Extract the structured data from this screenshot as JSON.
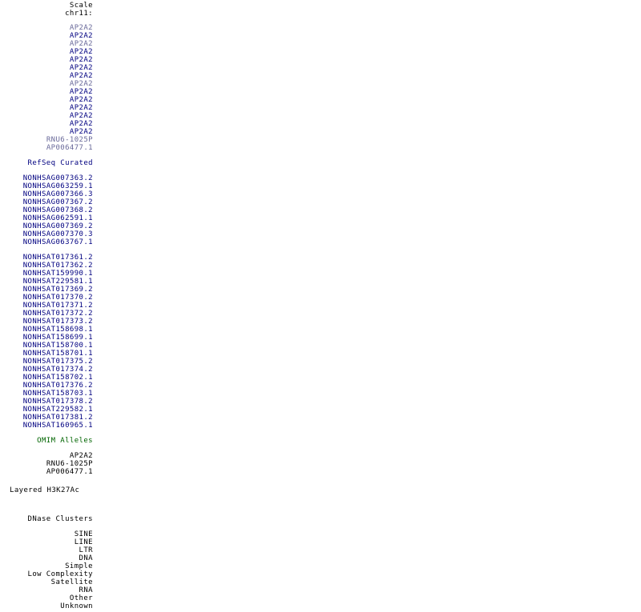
{
  "colors": {
    "black": "#000000",
    "navy": "#000080",
    "muted_navy": "#6a6a9a",
    "green": "#006400"
  },
  "groups": [
    {
      "name": "scale",
      "gap": 0,
      "items": [
        {
          "label": "Scale",
          "color": "black"
        },
        {
          "label": "chr11:",
          "color": "black"
        }
      ]
    },
    {
      "name": "gencode-genes",
      "gap": 8,
      "items": [
        {
          "label": "AP2A2",
          "color": "muted_navy"
        },
        {
          "label": "AP2A2",
          "color": "navy"
        },
        {
          "label": "AP2A2",
          "color": "muted_navy"
        },
        {
          "label": "AP2A2",
          "color": "navy"
        },
        {
          "label": "AP2A2",
          "color": "navy"
        },
        {
          "label": "AP2A2",
          "color": "navy"
        },
        {
          "label": "AP2A2",
          "color": "navy"
        },
        {
          "label": "AP2A2",
          "color": "muted_navy"
        },
        {
          "label": "AP2A2",
          "color": "navy"
        },
        {
          "label": "AP2A2",
          "color": "navy"
        },
        {
          "label": "AP2A2",
          "color": "navy"
        },
        {
          "label": "AP2A2",
          "color": "navy"
        },
        {
          "label": "AP2A2",
          "color": "navy"
        },
        {
          "label": "AP2A2",
          "color": "navy"
        },
        {
          "label": "RNU6-1025P",
          "color": "muted_navy"
        },
        {
          "label": "AP006477.1",
          "color": "muted_navy"
        }
      ]
    },
    {
      "name": "refseq-curated",
      "gap": 9,
      "items": [
        {
          "label": "RefSeq Curated",
          "color": "navy"
        }
      ]
    },
    {
      "name": "noncode-genes",
      "gap": 9,
      "items": [
        {
          "label": "NONHSAG007363.2",
          "color": "navy"
        },
        {
          "label": "NONHSAG063259.1",
          "color": "navy"
        },
        {
          "label": "NONHSAG007366.3",
          "color": "navy"
        },
        {
          "label": "NONHSAG007367.2",
          "color": "navy"
        },
        {
          "label": "NONHSAG007368.2",
          "color": "navy"
        },
        {
          "label": "NONHSAG062591.1",
          "color": "navy"
        },
        {
          "label": "NONHSAG007369.2",
          "color": "navy"
        },
        {
          "label": "NONHSAG007370.3",
          "color": "navy"
        },
        {
          "label": "NONHSAG063767.1",
          "color": "navy"
        }
      ]
    },
    {
      "name": "noncode-transcripts",
      "gap": 9,
      "items": [
        {
          "label": "NONHSAT017361.2",
          "color": "navy"
        },
        {
          "label": "NONHSAT017362.2",
          "color": "navy"
        },
        {
          "label": "NONHSAT159990.1",
          "color": "navy"
        },
        {
          "label": "NONHSAT229581.1",
          "color": "navy"
        },
        {
          "label": "NONHSAT017369.2",
          "color": "navy"
        },
        {
          "label": "NONHSAT017370.2",
          "color": "navy"
        },
        {
          "label": "NONHSAT017371.2",
          "color": "navy"
        },
        {
          "label": "NONHSAT017372.2",
          "color": "navy"
        },
        {
          "label": "NONHSAT017373.2",
          "color": "navy"
        },
        {
          "label": "NONHSAT158698.1",
          "color": "navy"
        },
        {
          "label": "NONHSAT158699.1",
          "color": "navy"
        },
        {
          "label": "NONHSAT158700.1",
          "color": "navy"
        },
        {
          "label": "NONHSAT158701.1",
          "color": "navy"
        },
        {
          "label": "NONHSAT017375.2",
          "color": "navy"
        },
        {
          "label": "NONHSAT017374.2",
          "color": "navy"
        },
        {
          "label": "NONHSAT158702.1",
          "color": "navy"
        },
        {
          "label": "NONHSAT017376.2",
          "color": "navy"
        },
        {
          "label": "NONHSAT158703.1",
          "color": "navy"
        },
        {
          "label": "NONHSAT017378.2",
          "color": "navy"
        },
        {
          "label": "NONHSAT229582.1",
          "color": "navy"
        },
        {
          "label": "NONHSAT017381.2",
          "color": "navy"
        },
        {
          "label": "NONHSAT160965.1",
          "color": "navy"
        }
      ]
    },
    {
      "name": "omim-alleles",
      "gap": 9,
      "items": [
        {
          "label": "OMIM Alleles",
          "color": "green"
        }
      ]
    },
    {
      "name": "gene-symbols",
      "gap": 9,
      "items": [
        {
          "label": "AP2A2",
          "color": "black"
        },
        {
          "label": "RNU6-1025P",
          "color": "black"
        },
        {
          "label": "AP006477.1",
          "color": "black"
        }
      ]
    },
    {
      "name": "layered-h3k27ac",
      "gap": 13,
      "align": "left",
      "items": [
        {
          "label": "Layered H3K27Ac",
          "color": "black"
        }
      ]
    },
    {
      "name": "dnase-clusters",
      "gap": 26,
      "items": [
        {
          "label": "DNase Clusters",
          "color": "black"
        }
      ]
    },
    {
      "name": "repeatmasker",
      "gap": 9,
      "items": [
        {
          "label": "SINE",
          "color": "black"
        },
        {
          "label": "LINE",
          "color": "black"
        },
        {
          "label": "LTR",
          "color": "black"
        },
        {
          "label": "DNA",
          "color": "black"
        },
        {
          "label": "Simple",
          "color": "black"
        },
        {
          "label": "Low Complexity",
          "color": "black"
        },
        {
          "label": "Satellite",
          "color": "black"
        },
        {
          "label": "RNA",
          "color": "black"
        },
        {
          "label": "Other",
          "color": "black"
        },
        {
          "label": "Unknown",
          "color": "black"
        }
      ]
    }
  ]
}
